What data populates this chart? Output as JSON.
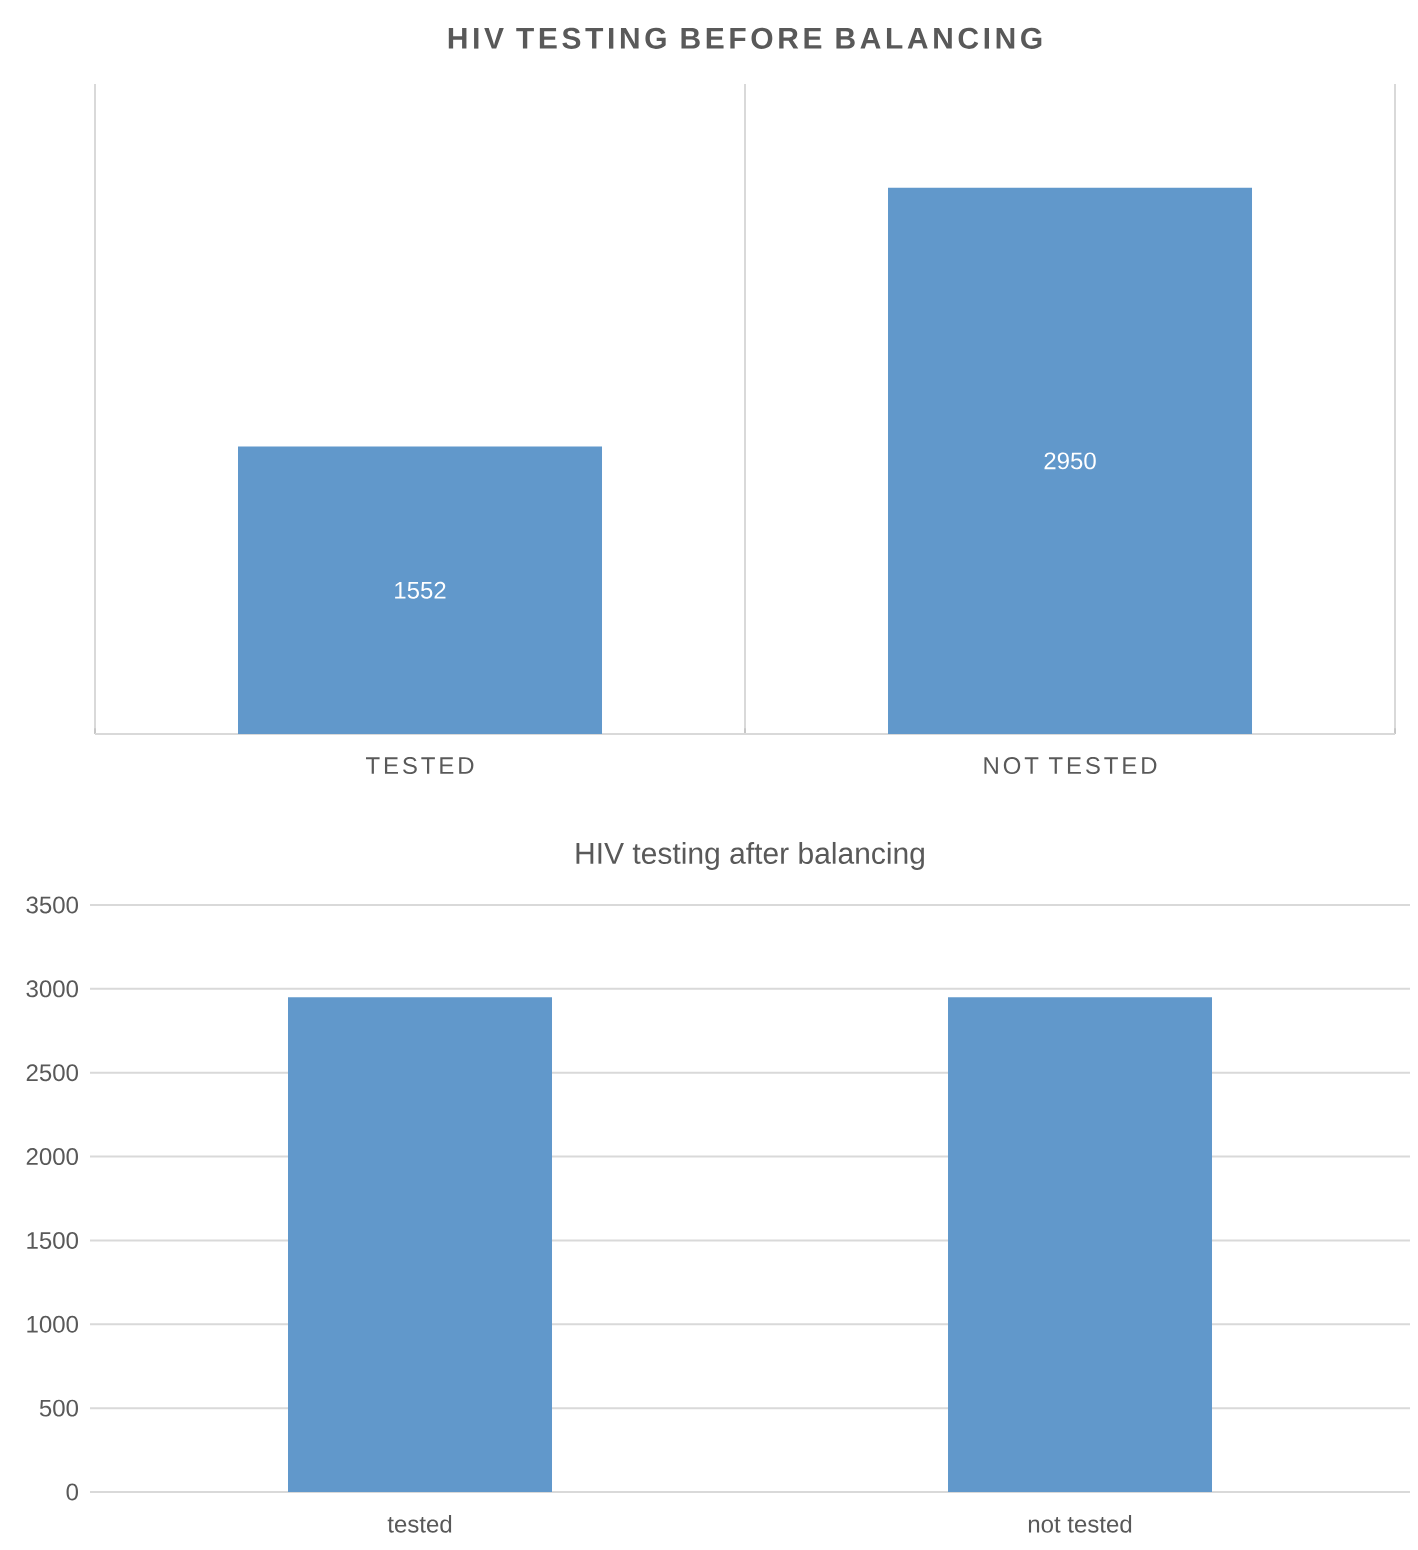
{
  "chart_data": [
    {
      "type": "bar",
      "title": "HIV TESTING BEFORE BALANCING",
      "categories": [
        "TESTED",
        "NOT TESTED"
      ],
      "values": [
        1552,
        2950
      ],
      "color": "#6198cb",
      "data_labels": true,
      "grid": "x",
      "tick_labels": "x"
    },
    {
      "type": "bar",
      "title": "HIV testing after balancing",
      "categories": [
        "tested",
        "not tested"
      ],
      "values": [
        2950,
        2950
      ],
      "color": "#6198cb",
      "ylim": [
        0,
        3500
      ],
      "yticks": [
        0,
        500,
        1000,
        1500,
        2000,
        2500,
        3000,
        3500
      ],
      "grid": "y"
    }
  ]
}
